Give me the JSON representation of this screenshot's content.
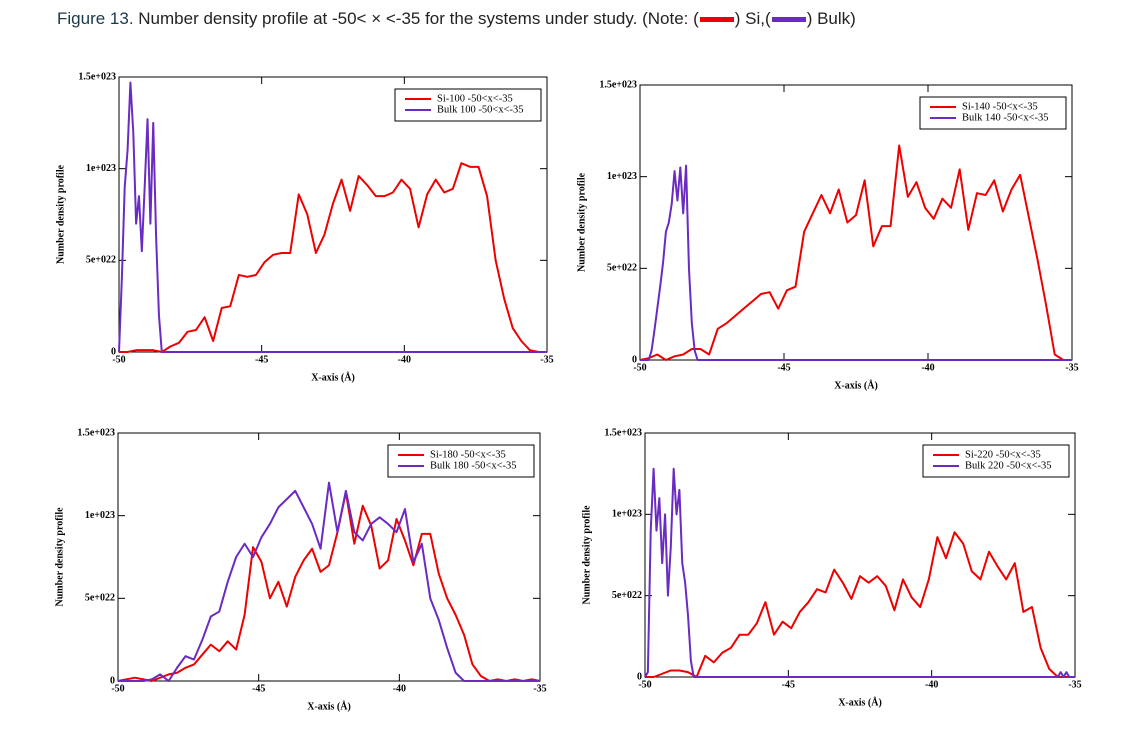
{
  "caption": {
    "label": "Figure 13.",
    "text": "Number density profile at -50< × <-35 for the systems under study. (Note:",
    "items": [
      {
        "open": "(",
        "close": ") Si,",
        "color": "#ee0000"
      },
      {
        "open": "(",
        "close": ") Bulk)",
        "color": "#6a2bc2"
      }
    ]
  },
  "chart_data": [
    {
      "type": "line",
      "xlabel": "X-axis (Å)",
      "ylabel": "Number density profile",
      "legend": "upper right",
      "xlim": [
        -50,
        -35
      ],
      "ylim": [
        0,
        1.5e+23
      ],
      "xticks": [
        -50,
        -45,
        -40,
        -35
      ],
      "yticks": [
        0,
        {
          "value": 5e+22,
          "label": "5e+022"
        },
        {
          "value": 1e+23,
          "label": "1e+023"
        },
        {
          "value": 1.5e+23,
          "label": "1.5e+023"
        }
      ],
      "series": [
        {
          "name": "Si-100 -50<x<-35",
          "color": "#ee0000",
          "x": [
            -50,
            -49.7,
            -49.4,
            -49.1,
            -48.8,
            -48.5,
            -48.2,
            -47.9,
            -47.6,
            -47.3,
            -47,
            -46.7,
            -46.4,
            -46.1,
            -45.8,
            -45.5,
            -45.2,
            -44.9,
            -44.6,
            -44.3,
            -44,
            -43.7,
            -43.4,
            -43.1,
            -42.8,
            -42.5,
            -42.2,
            -41.9,
            -41.6,
            -41.3,
            -41,
            -40.7,
            -40.4,
            -40.1,
            -39.8,
            -39.5,
            -39.2,
            -38.9,
            -38.6,
            -38.3,
            -38,
            -37.7,
            -37.4,
            -37.1,
            -36.8,
            -36.5,
            -36.2,
            -35.9,
            -35.6,
            -35.3,
            -35
          ],
          "values": [
            0,
            0,
            1e+21,
            1e+21,
            1e+21,
            0,
            3e+21,
            5e+21,
            1.1e+22,
            1.2e+22,
            1.9e+22,
            6e+21,
            2.4e+22,
            2.5e+22,
            4.2e+22,
            4.1e+22,
            4.2e+22,
            4.9e+22,
            5.3e+22,
            5.4e+22,
            5.4e+22,
            8.6e+22,
            7.5e+22,
            5.4e+22,
            6.4e+22,
            8.1e+22,
            9.4e+22,
            7.7e+22,
            9.6e+22,
            9.1e+22,
            8.5e+22,
            8.5e+22,
            8.7e+22,
            9.4e+22,
            8.9e+22,
            6.8e+22,
            8.6e+22,
            9.4e+22,
            8.7e+22,
            8.9e+22,
            1.03e+23,
            1.01e+23,
            1.01e+23,
            8.5e+22,
            5e+22,
            2.9e+22,
            1.3e+22,
            6e+21,
            1e+21,
            0,
            0
          ]
        },
        {
          "name": "Bulk 100 -50<x<-35",
          "color": "#6a2bc2",
          "x": [
            -50,
            -49.9,
            -49.8,
            -49.7,
            -49.6,
            -49.5,
            -49.4,
            -49.3,
            -49.2,
            -49.1,
            -49,
            -48.9,
            -48.8,
            -48.7,
            -48.6,
            -48.5,
            -35
          ],
          "values": [
            0,
            4e+22,
            9e+22,
            1.1e+23,
            1.47e+23,
            1.2e+23,
            7e+22,
            8.5e+22,
            5.5e+22,
            9e+22,
            1.27e+23,
            7e+22,
            1.25e+23,
            6.3e+22,
            2e+22,
            0,
            0
          ]
        }
      ]
    },
    {
      "type": "line",
      "xlabel": "X-axis (Å)",
      "ylabel": "Number density profile",
      "legend": "upper right",
      "xlim": [
        -50,
        -35
      ],
      "ylim": [
        0,
        1.5e+23
      ],
      "xticks": [
        -50,
        -45,
        -40,
        -35
      ],
      "yticks": [
        0,
        {
          "value": 5e+22,
          "label": "5e+022"
        },
        {
          "value": 1e+23,
          "label": "1e+023"
        },
        {
          "value": 1.5e+23,
          "label": "1.5e+023"
        }
      ],
      "series": [
        {
          "name": "Si-140 -50<x<-35",
          "color": "#ee0000",
          "x": [
            -50,
            -49.7,
            -49.4,
            -49.1,
            -48.8,
            -48.5,
            -48.2,
            -47.9,
            -47.6,
            -47.3,
            -47,
            -46.7,
            -46.4,
            -46.1,
            -45.8,
            -45.5,
            -45.2,
            -44.9,
            -44.6,
            -44.3,
            -44,
            -43.7,
            -43.4,
            -43.1,
            -42.8,
            -42.5,
            -42.2,
            -41.9,
            -41.6,
            -41.3,
            -41,
            -40.7,
            -40.4,
            -40.1,
            -39.8,
            -39.5,
            -39.2,
            -38.9,
            -38.6,
            -38.3,
            -38,
            -37.7,
            -37.4,
            -37.1,
            -36.8,
            -36.5,
            -36.2,
            -35.9,
            -35.6,
            -35.3,
            -35
          ],
          "values": [
            0,
            1e+21,
            3e+21,
            0,
            2e+21,
            3e+21,
            6e+21,
            6e+21,
            3e+21,
            1.7e+22,
            2e+22,
            2.4e+22,
            2.8e+22,
            3.2e+22,
            3.6e+22,
            3.7e+22,
            2.8e+22,
            3.8e+22,
            4e+22,
            7e+22,
            8e+22,
            9e+22,
            8e+22,
            9.3e+22,
            7.5e+22,
            7.9e+22,
            9.8e+22,
            6.2e+22,
            7.3e+22,
            7.3e+22,
            1.17e+23,
            8.9e+22,
            9.7e+22,
            8.3e+22,
            7.7e+22,
            8.8e+22,
            8.3e+22,
            1.04e+23,
            7.1e+22,
            9.1e+22,
            9e+22,
            9.8e+22,
            8.1e+22,
            9.3e+22,
            1.01e+23,
            7.8e+22,
            5.5e+22,
            3e+22,
            3e+21,
            0,
            0
          ]
        },
        {
          "name": "Bulk 140 -50<x<-35",
          "color": "#6a2bc2",
          "x": [
            -50,
            -49.9,
            -49.8,
            -49.7,
            -49.6,
            -49.5,
            -49.4,
            -49.3,
            -49.2,
            -49.1,
            -49,
            -48.9,
            -48.8,
            -48.7,
            -48.6,
            -48.5,
            -48.4,
            -48.3,
            -48.2,
            -48.1,
            -48,
            -35
          ],
          "values": [
            0,
            0,
            0,
            0,
            5e+21,
            1.6e+22,
            2.8e+22,
            4e+22,
            5.3e+22,
            7e+22,
            7.5e+22,
            8.5e+22,
            1.03e+23,
            8.7e+22,
            1.05e+23,
            8e+22,
            1.06e+23,
            5e+22,
            2e+22,
            5e+21,
            0,
            0
          ]
        }
      ]
    },
    {
      "type": "line",
      "xlabel": "X-axis (Å)",
      "ylabel": "Number density profile",
      "legend": "upper right",
      "xlim": [
        -50,
        -35
      ],
      "ylim": [
        0,
        1.5e+23
      ],
      "xticks": [
        -50,
        -45,
        -40,
        -35
      ],
      "yticks": [
        0,
        {
          "value": 5e+22,
          "label": "5e+022"
        },
        {
          "value": 1e+23,
          "label": "1e+023"
        },
        {
          "value": 1.5e+23,
          "label": "1.5e+023"
        }
      ],
      "series": [
        {
          "name": "Si-180 -50<x<-35",
          "color": "#ee0000",
          "x": [
            -50,
            -49.7,
            -49.4,
            -49.1,
            -48.8,
            -48.5,
            -48.2,
            -47.9,
            -47.6,
            -47.3,
            -47,
            -46.7,
            -46.4,
            -46.1,
            -45.8,
            -45.5,
            -45.2,
            -44.9,
            -44.6,
            -44.3,
            -44,
            -43.7,
            -43.4,
            -43.1,
            -42.8,
            -42.5,
            -42.2,
            -41.9,
            -41.6,
            -41.3,
            -41,
            -40.7,
            -40.4,
            -40.1,
            -39.8,
            -39.5,
            -39.2,
            -38.9,
            -38.6,
            -38.3,
            -38,
            -37.7,
            -37.4,
            -37.1,
            -36.8,
            -36.5,
            -36.2,
            -35.9,
            -35.6,
            -35.3,
            -35
          ],
          "values": [
            0,
            1e+21,
            2e+21,
            1e+21,
            0,
            2e+21,
            4e+21,
            5e+21,
            8e+21,
            1e+22,
            1.6e+22,
            2.2e+22,
            1.8e+22,
            2.4e+22,
            1.9e+22,
            4e+22,
            8.1e+22,
            7.2e+22,
            5e+22,
            6e+22,
            4.5e+22,
            6.3e+22,
            7.3e+22,
            8e+22,
            6.6e+22,
            7e+22,
            9e+22,
            1.14e+23,
            8.3e+22,
            1.06e+23,
            9.4e+22,
            6.8e+22,
            7.3e+22,
            9.8e+22,
            8.5e+22,
            7e+22,
            8.9e+22,
            8.9e+22,
            6.5e+22,
            5e+22,
            4e+22,
            2.8e+22,
            1e+22,
            3e+21,
            0,
            1e+21,
            0,
            1e+21,
            0,
            1e+21,
            0
          ]
        },
        {
          "name": "Bulk 180 -50<x<-35",
          "color": "#6a2bc2",
          "x": [
            -50,
            -49.7,
            -49.4,
            -49.1,
            -48.8,
            -48.5,
            -48.2,
            -47.9,
            -47.6,
            -47.3,
            -47,
            -46.7,
            -46.4,
            -46.1,
            -45.8,
            -45.5,
            -45.2,
            -44.9,
            -44.6,
            -44.3,
            -44,
            -43.7,
            -43.4,
            -43.1,
            -42.8,
            -42.5,
            -42.2,
            -41.9,
            -41.6,
            -41.3,
            -41,
            -40.7,
            -40.4,
            -40.1,
            -39.8,
            -39.5,
            -39.2,
            -38.9,
            -38.6,
            -38.3,
            -38,
            -37.7,
            -37.4,
            -37.1,
            -36.8,
            -36.5,
            -36.2,
            -35.9,
            -35.6,
            -35.3,
            -35
          ],
          "values": [
            0,
            0,
            0,
            0,
            1e+21,
            4e+21,
            0,
            8e+21,
            1.5e+22,
            1.3e+22,
            2.5e+22,
            3.9e+22,
            4.2e+22,
            6e+22,
            7.5e+22,
            8.3e+22,
            7.5e+22,
            8.7e+22,
            9.5e+22,
            1.05e+23,
            1.1e+23,
            1.15e+23,
            1.05e+23,
            9.5e+22,
            8e+22,
            1.2e+23,
            9e+22,
            1.15e+23,
            9e+22,
            8.5e+22,
            9.5e+22,
            9.9e+22,
            9.5e+22,
            9e+22,
            1.04e+23,
            7.2e+22,
            8.3e+22,
            5e+22,
            3.7e+22,
            2e+22,
            5e+21,
            0,
            0,
            0,
            0,
            0,
            0,
            0,
            0,
            0,
            0
          ]
        }
      ]
    },
    {
      "type": "line",
      "xlabel": "X-axis (Å)",
      "ylabel": "Number density profile",
      "legend": "upper right",
      "xlim": [
        -50,
        -35
      ],
      "ylim": [
        0,
        1.5e+23
      ],
      "xticks": [
        -50,
        -45,
        -40,
        -35
      ],
      "yticks": [
        0,
        {
          "value": 5e+22,
          "label": "5e+022"
        },
        {
          "value": 1e+23,
          "label": "1e+023"
        },
        {
          "value": 1.5e+23,
          "label": "1.5e+023"
        }
      ],
      "series": [
        {
          "name": "Si-220 -50<x<-35",
          "color": "#ee0000",
          "x": [
            -50,
            -49.7,
            -49.4,
            -49.1,
            -48.8,
            -48.5,
            -48.2,
            -47.9,
            -47.6,
            -47.3,
            -47,
            -46.7,
            -46.4,
            -46.1,
            -45.8,
            -45.5,
            -45.2,
            -44.9,
            -44.6,
            -44.3,
            -44,
            -43.7,
            -43.4,
            -43.1,
            -42.8,
            -42.5,
            -42.2,
            -41.9,
            -41.6,
            -41.3,
            -41,
            -40.7,
            -40.4,
            -40.1,
            -39.8,
            -39.5,
            -39.2,
            -38.9,
            -38.6,
            -38.3,
            -38,
            -37.7,
            -37.4,
            -37.1,
            -36.8,
            -36.5,
            -36.2,
            -35.9,
            -35.6,
            -35.3,
            -35
          ],
          "values": [
            0,
            0,
            2e+21,
            4e+21,
            4e+21,
            3e+21,
            0,
            1.3e+22,
            9e+21,
            1.5e+22,
            1.8e+22,
            2.6e+22,
            2.6e+22,
            3.3e+22,
            4.6e+22,
            2.6e+22,
            3.4e+22,
            3e+22,
            4e+22,
            4.6e+22,
            5.4e+22,
            5.2e+22,
            6.6e+22,
            5.8e+22,
            4.8e+22,
            6.2e+22,
            5.8e+22,
            6.2e+22,
            5.6e+22,
            4.1e+22,
            6e+22,
            4.9e+22,
            4.3e+22,
            6e+22,
            8.6e+22,
            7.3e+22,
            8.9e+22,
            8.2e+22,
            6.5e+22,
            6e+22,
            7.7e+22,
            6.8e+22,
            6e+22,
            7e+22,
            4e+22,
            4.3e+22,
            1.8e+22,
            5e+21,
            0,
            0,
            0
          ]
        },
        {
          "name": "Bulk 220 -50<x<-35",
          "color": "#6a2bc2",
          "x": [
            -50,
            -49.9,
            -49.8,
            -49.7,
            -49.6,
            -49.5,
            -49.4,
            -49.3,
            -49.2,
            -49.1,
            -49,
            -48.9,
            -48.8,
            -48.7,
            -48.6,
            -48.5,
            -48.4,
            -48.3,
            -35.6,
            -35.5,
            -35.4,
            -35.3,
            -35.2,
            -35
          ],
          "values": [
            0,
            3e+21,
            9e+22,
            1.28e+23,
            9e+22,
            1.1e+23,
            7e+22,
            1e+23,
            5e+22,
            8e+22,
            1.28e+23,
            1e+23,
            1.15e+23,
            7e+22,
            5.8e+22,
            3.8e+22,
            1e+22,
            0,
            0,
            3e+21,
            0,
            3e+21,
            0,
            0
          ]
        }
      ]
    }
  ]
}
